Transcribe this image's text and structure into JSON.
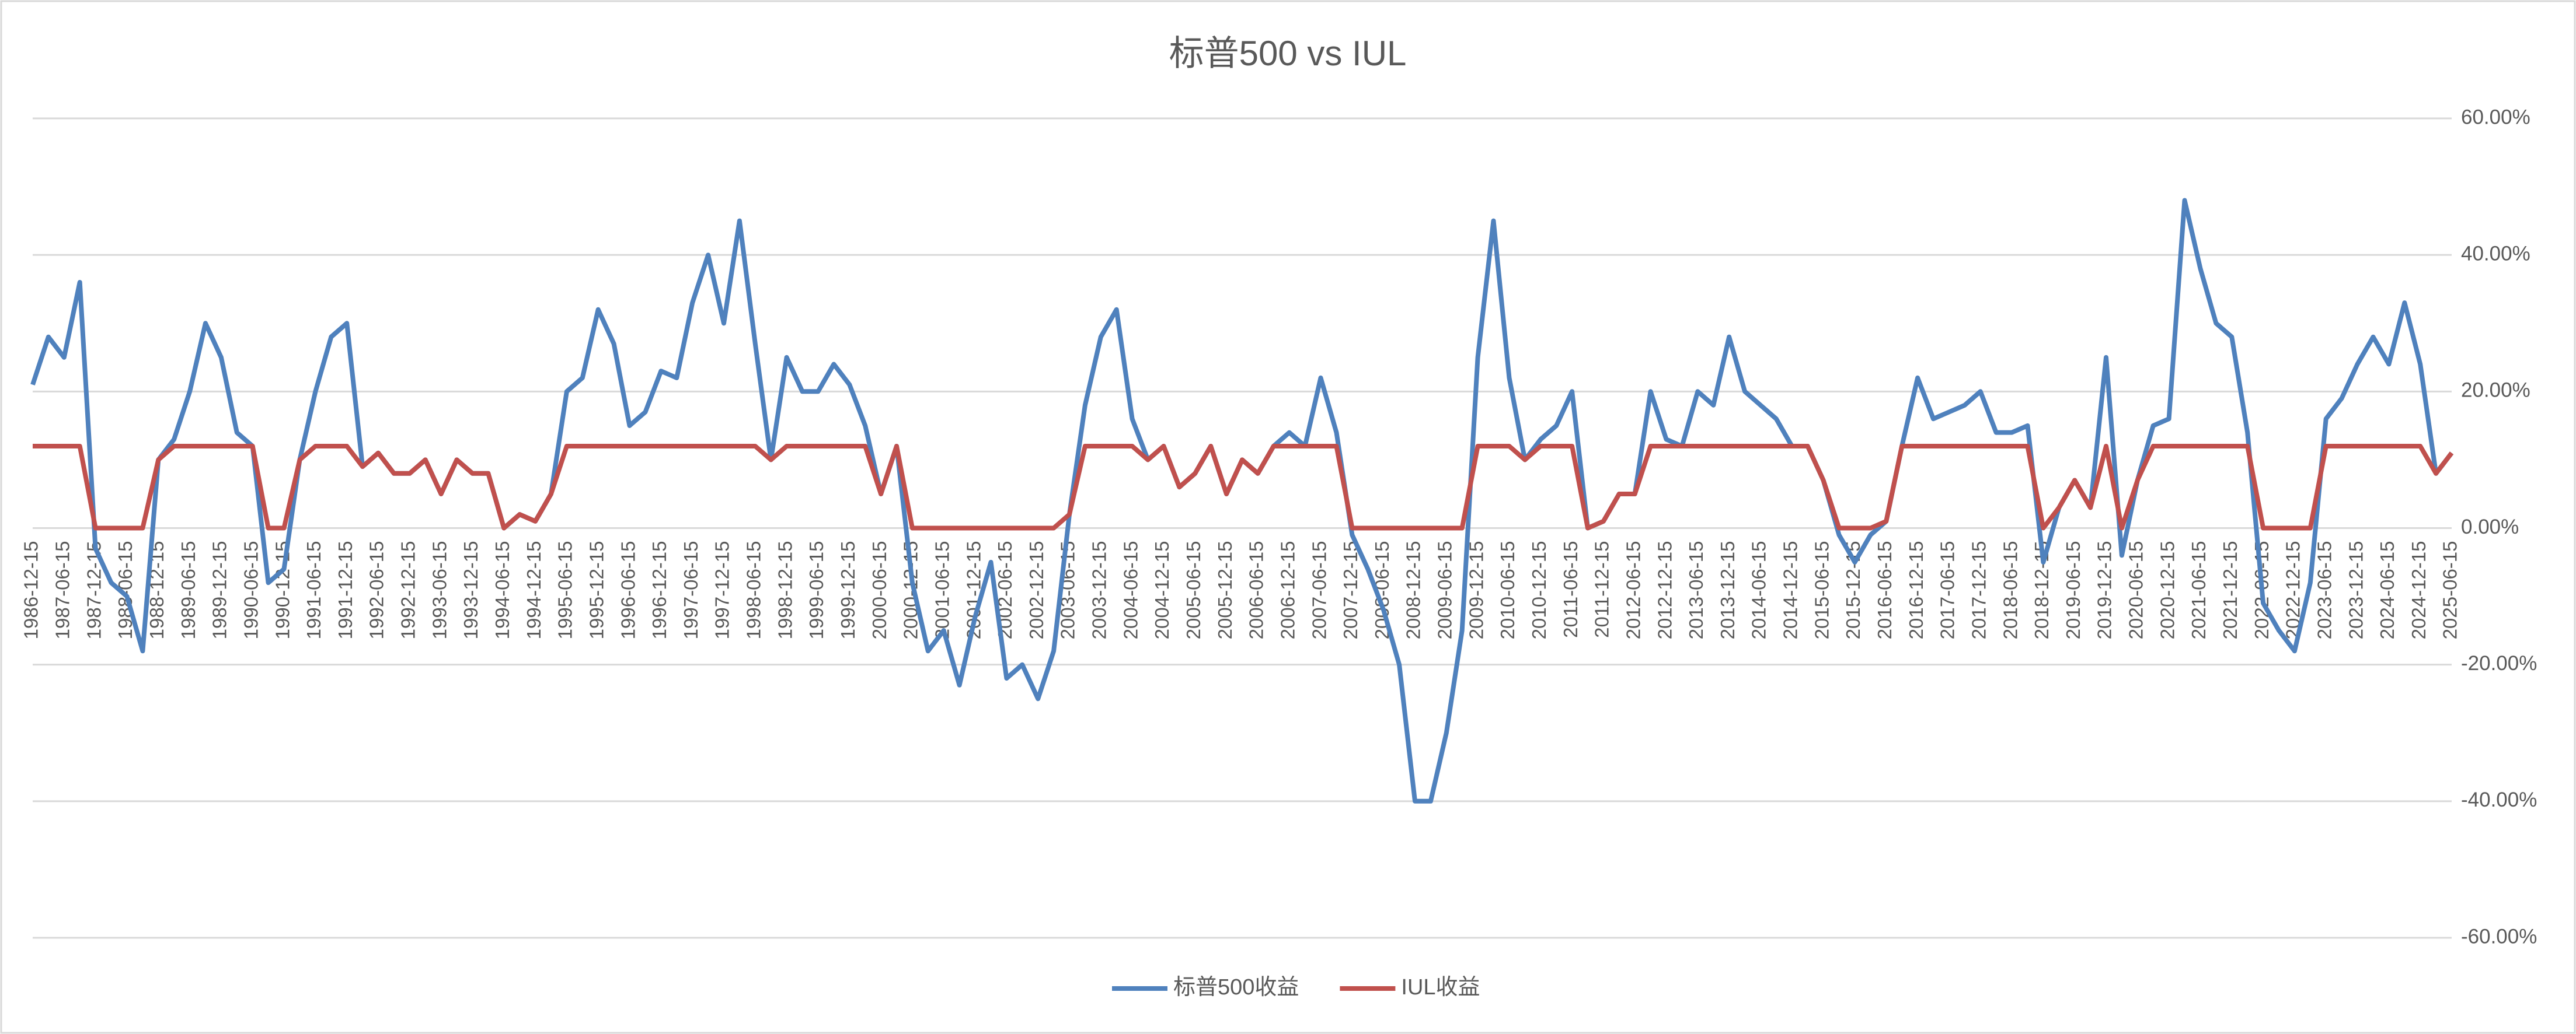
{
  "chart_data": {
    "type": "line",
    "title": "标普500 vs IUL",
    "categories": [
      "1986-12-15",
      null,
      "1987-06-15",
      null,
      "1987-12-15",
      null,
      "1988-06-15",
      null,
      "1988-12-15",
      null,
      "1989-06-15",
      null,
      "1989-12-15",
      null,
      "1990-06-15",
      null,
      "1990-12-15",
      null,
      "1991-06-15",
      null,
      "1991-12-15",
      null,
      "1992-06-15",
      null,
      "1992-12-15",
      null,
      "1993-06-15",
      null,
      "1993-12-15",
      null,
      "1994-06-15",
      null,
      "1994-12-15",
      null,
      "1995-06-15",
      null,
      "1995-12-15",
      null,
      "1996-06-15",
      null,
      "1996-12-15",
      null,
      "1997-06-15",
      null,
      "1997-12-15",
      null,
      "1998-06-15",
      null,
      "1998-12-15",
      null,
      "1999-06-15",
      null,
      "1999-12-15",
      null,
      "2000-06-15",
      null,
      "2000-12-15",
      null,
      "2001-06-15",
      null,
      "2001-12-15",
      null,
      "2002-06-15",
      null,
      "2002-12-15",
      null,
      "2003-06-15",
      null,
      "2003-12-15",
      null,
      "2004-06-15",
      null,
      "2004-12-15",
      null,
      "2005-06-15",
      null,
      "2005-12-15",
      null,
      "2006-06-15",
      null,
      "2006-12-15",
      null,
      "2007-06-15",
      null,
      "2007-12-15",
      null,
      "2008-06-15",
      null,
      "2008-12-15",
      null,
      "2009-06-15",
      null,
      "2009-12-15",
      null,
      "2010-06-15",
      null,
      "2010-12-15",
      null,
      "2011-06-15",
      null,
      "2011-12-15",
      null,
      "2012-06-15",
      null,
      "2012-12-15",
      null,
      "2013-06-15",
      null,
      "2013-12-15",
      null,
      "2014-06-15",
      null,
      "2014-12-15",
      null,
      "2015-06-15",
      null,
      "2015-12-15",
      null,
      "2016-06-15",
      null,
      "2016-12-15",
      null,
      "2017-06-15",
      null,
      "2017-12-15",
      null,
      "2018-06-15",
      null,
      "2018-12-15",
      null,
      "2019-06-15",
      null,
      "2019-12-15",
      null,
      "2020-06-15",
      null,
      "2020-12-15",
      null,
      "2021-06-15",
      null,
      "2021-12-15",
      null,
      "2022-06-15",
      null,
      "2022-12-15",
      null,
      "2023-06-15",
      null,
      "2023-12-15",
      null,
      "2024-06-15",
      null,
      "2024-12-15",
      null,
      "2025-06-15"
    ],
    "series": [
      {
        "name": "标普500收益",
        "color": "#4f81bd",
        "values": [
          21,
          28,
          25,
          36,
          -3,
          -8,
          -10,
          -18,
          10,
          13,
          20,
          30,
          25,
          14,
          12,
          -8,
          -6,
          10,
          20,
          28,
          30,
          9,
          11,
          8,
          8,
          10,
          5,
          10,
          8,
          8,
          0,
          2,
          1,
          5,
          20,
          22,
          32,
          27,
          15,
          17,
          23,
          22,
          33,
          40,
          30,
          45,
          27,
          10,
          25,
          20,
          20,
          24,
          21,
          15,
          5,
          12,
          -8,
          -18,
          -15,
          -23,
          -13,
          -5,
          -22,
          -20,
          -25,
          -18,
          2,
          18,
          28,
          32,
          16,
          10,
          12,
          6,
          8,
          12,
          5,
          10,
          8,
          12,
          14,
          12,
          22,
          14,
          -1,
          -6,
          -12,
          -20,
          -40,
          -40,
          -30,
          -15,
          25,
          45,
          22,
          10,
          13,
          15,
          20,
          0,
          1,
          5,
          5,
          20,
          13,
          12,
          20,
          18,
          28,
          20,
          18,
          16,
          12,
          12,
          7,
          -1,
          -5,
          -1,
          1,
          12,
          22,
          16,
          17,
          18,
          20,
          14,
          14,
          15,
          -5,
          3,
          7,
          3,
          25,
          -4,
          7,
          15,
          16,
          48,
          38,
          30,
          28,
          14,
          -11,
          -15,
          -18,
          -8,
          16,
          19,
          24,
          28,
          24,
          33,
          24,
          8,
          11
        ]
      },
      {
        "name": "IUL收益",
        "color": "#c0504d",
        "values": [
          12,
          12,
          12,
          12,
          0,
          0,
          0,
          0,
          10,
          12,
          12,
          12,
          12,
          12,
          12,
          0,
          0,
          10,
          12,
          12,
          12,
          9,
          11,
          8,
          8,
          10,
          5,
          10,
          8,
          8,
          0,
          2,
          1,
          5,
          12,
          12,
          12,
          12,
          12,
          12,
          12,
          12,
          12,
          12,
          12,
          12,
          12,
          10,
          12,
          12,
          12,
          12,
          12,
          12,
          5,
          12,
          0,
          0,
          0,
          0,
          0,
          0,
          0,
          0,
          0,
          0,
          2,
          12,
          12,
          12,
          12,
          10,
          12,
          6,
          8,
          12,
          5,
          10,
          8,
          12,
          12,
          12,
          12,
          12,
          0,
          0,
          0,
          0,
          0,
          0,
          0,
          0,
          12,
          12,
          12,
          10,
          12,
          12,
          12,
          0,
          1,
          5,
          5,
          12,
          12,
          12,
          12,
          12,
          12,
          12,
          12,
          12,
          12,
          12,
          7,
          0,
          0,
          0,
          1,
          12,
          12,
          12,
          12,
          12,
          12,
          12,
          12,
          12,
          0,
          3,
          7,
          3,
          12,
          0,
          7,
          12,
          12,
          12,
          12,
          12,
          12,
          12,
          0,
          0,
          0,
          0,
          12,
          12,
          12,
          12,
          12,
          12,
          12,
          8,
          11
        ]
      }
    ],
    "ylim": [
      -60,
      60
    ],
    "yticks": [
      {
        "value": -60,
        "label": "-60.00%"
      },
      {
        "value": -40,
        "label": "-40.00%"
      },
      {
        "value": -20,
        "label": "-20.00%"
      },
      {
        "value": 0,
        "label": "0.00%"
      },
      {
        "value": 20,
        "label": "20.00%"
      },
      {
        "value": 40,
        "label": "40.00%"
      },
      {
        "value": 60,
        "label": "60.00%"
      }
    ],
    "grid": true,
    "legend": "bottom"
  }
}
